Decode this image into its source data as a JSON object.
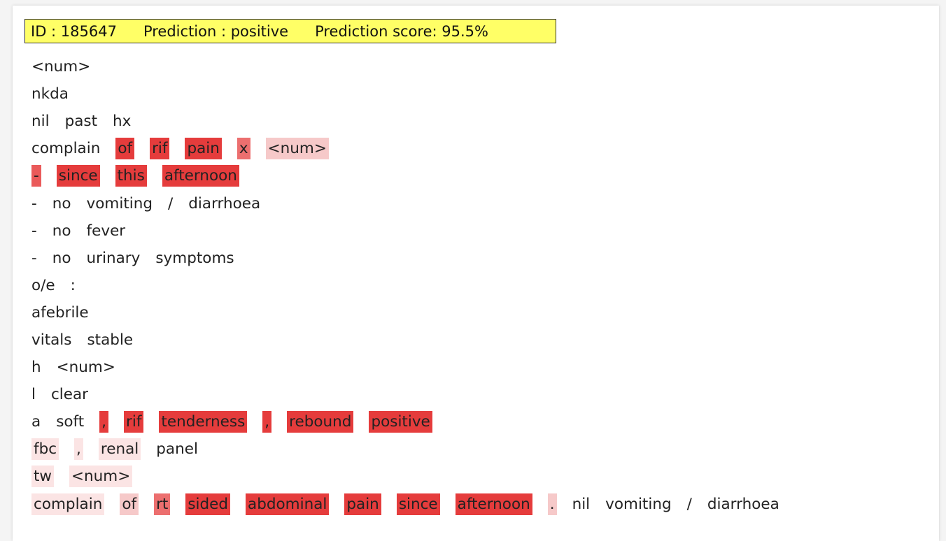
{
  "header": {
    "id": "ID : 185647",
    "prediction": "Prediction : positive",
    "score": "Prediction score: 95.5%"
  },
  "lines": [
    [
      {
        "text": "<num>"
      }
    ],
    [
      {
        "text": "nkda"
      }
    ],
    [
      {
        "text": "nil"
      },
      {
        "text": "past"
      },
      {
        "text": "hx"
      }
    ],
    [
      {
        "text": "complain"
      },
      {
        "text": "of",
        "color": "#e53c3c"
      },
      {
        "text": "rif",
        "color": "#e53c3c"
      },
      {
        "text": "pain",
        "color": "#e53c3c"
      },
      {
        "text": "x",
        "color": "#ec6f6f"
      },
      {
        "text": "<num>",
        "color": "#f6c9c9"
      }
    ],
    [
      {
        "text": "-",
        "color": "#ea5a5a"
      },
      {
        "text": "since",
        "color": "#e53c3c"
      },
      {
        "text": "this",
        "color": "#e53c3c"
      },
      {
        "text": "afternoon",
        "color": "#e53c3c"
      }
    ],
    [
      {
        "text": "-"
      },
      {
        "text": "no"
      },
      {
        "text": "vomiting"
      },
      {
        "text": "/"
      },
      {
        "text": "diarrhoea"
      }
    ],
    [
      {
        "text": "-"
      },
      {
        "text": "no"
      },
      {
        "text": "fever"
      }
    ],
    [
      {
        "text": "-"
      },
      {
        "text": "no"
      },
      {
        "text": "urinary"
      },
      {
        "text": "symptoms"
      }
    ],
    [
      {
        "text": "o/e"
      },
      {
        "text": ":"
      }
    ],
    [
      {
        "text": "afebrile"
      }
    ],
    [
      {
        "text": "vitals"
      },
      {
        "text": "stable"
      }
    ],
    [
      {
        "text": "h"
      },
      {
        "text": "<num>"
      }
    ],
    [
      {
        "text": "l"
      },
      {
        "text": "clear"
      }
    ],
    [
      {
        "text": "a"
      },
      {
        "text": "soft"
      },
      {
        "text": ",",
        "color": "#e53c3c"
      },
      {
        "text": "rif",
        "color": "#e53c3c"
      },
      {
        "text": "tenderness",
        "color": "#e53c3c"
      },
      {
        "text": ",",
        "color": "#e53c3c"
      },
      {
        "text": "rebound",
        "color": "#e53c3c"
      },
      {
        "text": "positive",
        "color": "#e53c3c"
      }
    ],
    [
      {
        "text": "fbc",
        "color": "#fbe4e4"
      },
      {
        "text": ",",
        "color": "#fbe4e4"
      },
      {
        "text": "renal",
        "color": "#fbe4e4"
      },
      {
        "text": "panel"
      }
    ],
    [
      {
        "text": "tw",
        "color": "#fbe4e4"
      },
      {
        "text": "<num>",
        "color": "#fbe4e4"
      }
    ],
    [
      {
        "text": "complain",
        "color": "#fbe4e4"
      },
      {
        "text": "of",
        "color": "#f6c9c9"
      },
      {
        "text": "rt",
        "color": "#ec6f6f"
      },
      {
        "text": "sided",
        "color": "#e53c3c"
      },
      {
        "text": "abdominal",
        "color": "#e53c3c"
      },
      {
        "text": "pain",
        "color": "#e53c3c"
      },
      {
        "text": "since",
        "color": "#e53c3c"
      },
      {
        "text": "afternoon",
        "color": "#e53c3c"
      },
      {
        "text": ".",
        "color": "#f6c9c9"
      },
      {
        "text": "nil"
      },
      {
        "text": "vomiting"
      },
      {
        "text": "/"
      },
      {
        "text": "diarrhoea"
      }
    ]
  ]
}
